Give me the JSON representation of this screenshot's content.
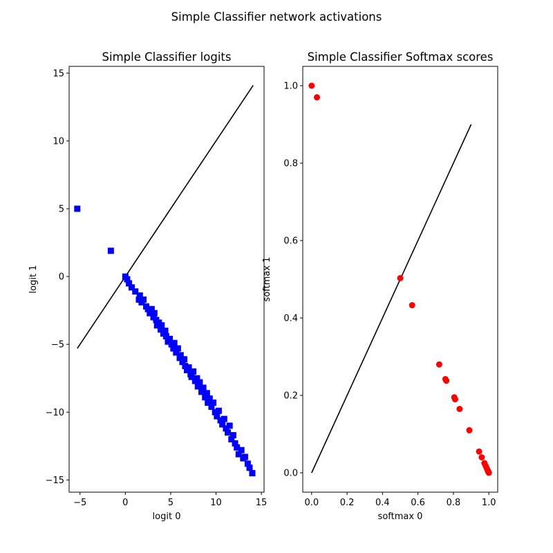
{
  "figure": {
    "title": "Simple Classifier network activations"
  },
  "chart_data": [
    {
      "type": "scatter",
      "title": "Simple Classifier logits",
      "xlabel": "logit 0",
      "ylabel": "logit 1",
      "xlim": [
        -6.2,
        15.3
      ],
      "ylim": [
        -15.9,
        15.5
      ],
      "xticks": [
        -5,
        0,
        5,
        10,
        15
      ],
      "yticks": [
        -15,
        -10,
        -5,
        0,
        5,
        10,
        15
      ],
      "xtick_labels": [
        "−5",
        "0",
        "5",
        "10",
        "15"
      ],
      "ytick_labels": [
        "−15",
        "−10",
        "−5",
        "0",
        "5",
        "10",
        "15"
      ],
      "grid": false,
      "line": {
        "x": [
          -5.3,
          14.1
        ],
        "y": [
          -5.3,
          14.1
        ],
        "color": "#000000"
      },
      "series": [
        {
          "marker": "square",
          "color": "#0000ff",
          "x": [
            -5.3,
            -1.6,
            0.0,
            0.2,
            0.4,
            0.7,
            1.1,
            1.5,
            1.6,
            1.8,
            2.0,
            2.3,
            2.5,
            2.7,
            2.9,
            3.1,
            3.2,
            3.4,
            3.5,
            3.7,
            3.9,
            4.0,
            4.2,
            4.4,
            4.5,
            4.7,
            4.9,
            5.1,
            5.3,
            5.4,
            5.6,
            5.8,
            6.0,
            6.1,
            6.3,
            6.5,
            6.6,
            6.8,
            7.0,
            7.2,
            7.3,
            7.5,
            7.7,
            7.9,
            8.0,
            8.2,
            8.4,
            8.6,
            8.8,
            9.0,
            9.1,
            9.3,
            9.5,
            9.7,
            9.9,
            10.1,
            10.3,
            10.5,
            10.7,
            10.9,
            11.1,
            11.3,
            11.5,
            11.7,
            11.9,
            12.1,
            12.3,
            12.5,
            12.8,
            13.0,
            13.2,
            13.5,
            13.7,
            14.0
          ],
          "y": [
            5.0,
            1.9,
            0.0,
            -0.2,
            -0.5,
            -0.8,
            -1.1,
            -1.7,
            -1.4,
            -1.9,
            -1.7,
            -2.2,
            -2.4,
            -2.7,
            -2.4,
            -3.0,
            -2.7,
            -3.2,
            -3.6,
            -3.4,
            -3.9,
            -3.6,
            -4.2,
            -4.0,
            -4.4,
            -4.8,
            -4.6,
            -5.0,
            -5.3,
            -4.9,
            -5.6,
            -5.3,
            -6.0,
            -5.8,
            -6.3,
            -6.1,
            -6.6,
            -6.9,
            -6.7,
            -7.2,
            -7.4,
            -7.0,
            -7.7,
            -7.5,
            -8.1,
            -7.8,
            -8.5,
            -8.2,
            -8.9,
            -8.6,
            -9.3,
            -9.0,
            -9.6,
            -9.3,
            -10.0,
            -10.3,
            -9.9,
            -10.6,
            -10.9,
            -10.5,
            -11.2,
            -11.5,
            -11.0,
            -12.0,
            -11.7,
            -12.3,
            -12.6,
            -13.1,
            -12.8,
            -13.4,
            -13.3,
            -13.8,
            -14.1,
            -14.5
          ]
        }
      ]
    },
    {
      "type": "scatter",
      "title": "Simple Classifier Softmax scores",
      "xlabel": "softmax 0",
      "ylabel": "softmax 1",
      "xlim": [
        -0.05,
        1.05
      ],
      "ylim": [
        -0.05,
        1.05
      ],
      "xticks": [
        0.0,
        0.2,
        0.4,
        0.6,
        0.8,
        1.0
      ],
      "yticks": [
        0.0,
        0.2,
        0.4,
        0.6,
        0.8,
        1.0
      ],
      "xtick_labels": [
        "0.0",
        "0.2",
        "0.4",
        "0.6",
        "0.8",
        "1.0"
      ],
      "ytick_labels": [
        "0.0",
        "0.2",
        "0.4",
        "0.6",
        "0.8",
        "1.0"
      ],
      "grid": false,
      "line": {
        "x": [
          0.0,
          0.9
        ],
        "y": [
          0.0,
          0.9
        ],
        "color": "#000000"
      },
      "series": [
        {
          "marker": "circle",
          "color": "#ff0000",
          "x": [
            0.0,
            0.03,
            0.5,
            0.567,
            0.72,
            0.755,
            0.76,
            0.805,
            0.81,
            0.835,
            0.89,
            0.945,
            0.96,
            0.975,
            0.982,
            0.988,
            0.992,
            0.995,
            0.997,
            0.999,
            1.0
          ],
          "y": [
            1.0,
            0.97,
            0.503,
            0.433,
            0.28,
            0.242,
            0.238,
            0.195,
            0.19,
            0.165,
            0.11,
            0.055,
            0.04,
            0.025,
            0.018,
            0.012,
            0.008,
            0.005,
            0.003,
            0.001,
            0.0
          ]
        }
      ]
    }
  ]
}
